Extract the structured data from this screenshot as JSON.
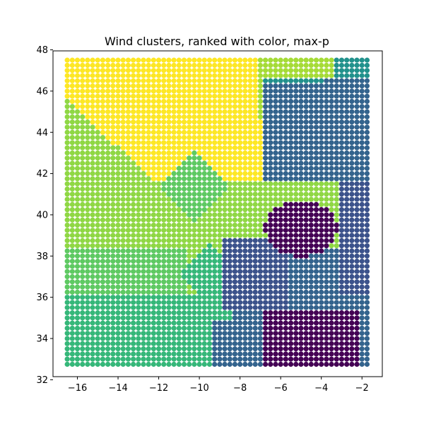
{
  "chart_data": {
    "type": "scatter",
    "title": "Wind clusters, ranked with color, max-p",
    "xlabel": "",
    "ylabel": "",
    "xlim": [
      -17.2,
      -1.0
    ],
    "ylim": [
      32.15,
      47.95
    ],
    "grid": false,
    "legend": "none",
    "x_ticks": [
      -16,
      -14,
      -12,
      -10,
      -8,
      -6,
      -4,
      -2
    ],
    "y_ticks": [
      32,
      34,
      36,
      38,
      40,
      42,
      44,
      46,
      48
    ],
    "x_tick_labels": [
      "−16",
      "−14",
      "−12",
      "−10",
      "−8",
      "−6",
      "−4",
      "−2"
    ],
    "y_tick_labels": [
      "32",
      "34",
      "36",
      "38",
      "40",
      "42",
      "44",
      "46",
      "48"
    ],
    "grid_points": {
      "x_start": -16.5,
      "x_end": -1.75,
      "x_step": 0.25,
      "y_start": 32.75,
      "y_end": 47.5,
      "y_step": 0.25
    },
    "colormap": [
      "#440154",
      "#3b528b",
      "#33638d",
      "#21918c",
      "#35b779",
      "#5ec962",
      "#8fd744",
      "#a5db36",
      "#c8e020",
      "#fde725"
    ],
    "clusters": [
      {
        "rank": 0,
        "color": "#fde725",
        "region": "north-west"
      },
      {
        "rank": 1,
        "color": "#a5db36",
        "region": "north-center"
      },
      {
        "rank": 2,
        "color": "#8fd744",
        "region": "west-center"
      },
      {
        "rank": 3,
        "color": "#5ec962",
        "region": "center"
      },
      {
        "rank": 4,
        "color": "#35b779",
        "region": "south-west"
      },
      {
        "rank": 5,
        "color": "#21918c",
        "region": "north-east"
      },
      {
        "rank": 6,
        "color": "#33638d",
        "region": "center-east"
      },
      {
        "rank": 7,
        "color": "#3b528b",
        "region": "east"
      },
      {
        "rank": 8,
        "color": "#440154",
        "region": "east-core"
      },
      {
        "rank": 9,
        "color": "#440154",
        "region": "south-east"
      }
    ]
  }
}
